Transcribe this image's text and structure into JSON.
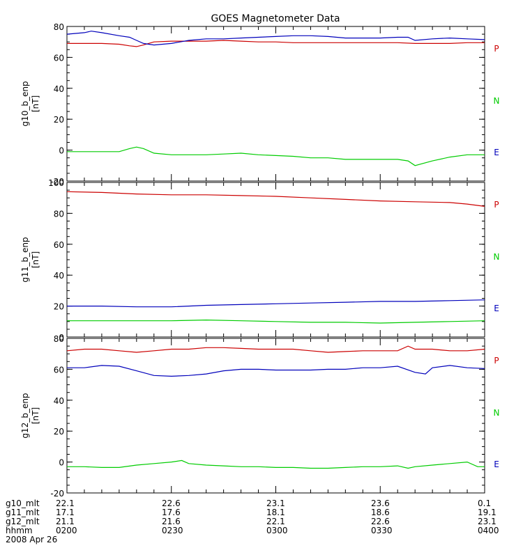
{
  "chart_data": {
    "type": "line",
    "title": "GOES Magnetometer Data",
    "panels": [
      {
        "ylabel": "g10_b_enp",
        "yunit": "[nT]",
        "ylim": [
          -20,
          80
        ],
        "yticks": [
          -20,
          0,
          20,
          40,
          60,
          80
        ],
        "series": [
          {
            "name": "P",
            "color": "#cc0000",
            "x": [
              0,
              5,
              10,
              15,
              18,
              20,
              22,
              25,
              30,
              35,
              40,
              45,
              50,
              55,
              60,
              65,
              70,
              75,
              80,
              85,
              90,
              95,
              100,
              105,
              110,
              115,
              120
            ],
            "y": [
              69,
              69,
              69,
              68.5,
              67.5,
              67,
              68,
              70,
              70.5,
              70.5,
              70.5,
              71,
              70.5,
              70,
              70,
              69.5,
              69.5,
              69.5,
              69.5,
              69.5,
              69.5,
              69.5,
              69,
              69,
              69,
              69.5,
              69.5
            ]
          },
          {
            "name": "N",
            "color": "#00cc00",
            "x": [
              0,
              5,
              10,
              15,
              18,
              20,
              22,
              25,
              30,
              35,
              40,
              45,
              50,
              55,
              60,
              65,
              70,
              75,
              80,
              85,
              90,
              95,
              98,
              100,
              105,
              110,
              115,
              120
            ],
            "y": [
              -1,
              -1,
              -1,
              -1,
              1,
              2,
              1,
              -2,
              -3,
              -3,
              -3,
              -2.5,
              -2,
              -3,
              -3.5,
              -4,
              -5,
              -5,
              -6,
              -6,
              -6,
              -6,
              -7,
              -10,
              -7,
              -4.5,
              -3,
              -3
            ]
          },
          {
            "name": "E",
            "color": "#0000bb",
            "x": [
              0,
              5,
              7,
              10,
              15,
              18,
              20,
              22,
              25,
              30,
              35,
              40,
              45,
              50,
              55,
              60,
              65,
              70,
              75,
              80,
              85,
              90,
              95,
              98,
              100,
              105,
              110,
              115,
              120
            ],
            "y": [
              75,
              76,
              77,
              76,
              74,
              73,
              71,
              69,
              68,
              69,
              71,
              72,
              72,
              72.5,
              73,
              73.5,
              74,
              74,
              73.5,
              72.5,
              72.5,
              72.5,
              73,
              73,
              71,
              72,
              72.5,
              72,
              71.5
            ]
          }
        ]
      },
      {
        "ylabel": "g11_b_enp",
        "yunit": "[nT]",
        "ylim": [
          0,
          100
        ],
        "yticks": [
          0,
          20,
          40,
          60,
          80,
          100
        ],
        "series": [
          {
            "name": "P",
            "color": "#cc0000",
            "x": [
              0,
              10,
              20,
              30,
              40,
              50,
              60,
              70,
              80,
              90,
              100,
              110,
              115,
              120
            ],
            "y": [
              94,
              93.5,
              92.5,
              92,
              92,
              91.5,
              91,
              90,
              89,
              88,
              87.5,
              87,
              86,
              84.5
            ]
          },
          {
            "name": "N",
            "color": "#00cc00",
            "x": [
              0,
              10,
              20,
              30,
              40,
              50,
              60,
              70,
              80,
              90,
              100,
              110,
              120
            ],
            "y": [
              10.5,
              10.5,
              10.5,
              10.5,
              11,
              10.5,
              10,
              9.5,
              9.5,
              9,
              9.5,
              10,
              10.5
            ]
          },
          {
            "name": "E",
            "color": "#0000bb",
            "x": [
              0,
              10,
              20,
              30,
              40,
              50,
              60,
              70,
              80,
              90,
              100,
              110,
              120
            ],
            "y": [
              20,
              20,
              19.5,
              19.5,
              20.5,
              21,
              21.5,
              22,
              22.5,
              23,
              23,
              23.5,
              24
            ]
          }
        ]
      },
      {
        "ylabel": "g12_b_enp",
        "yunit": "[nT]",
        "ylim": [
          -20,
          80
        ],
        "yticks": [
          -20,
          0,
          20,
          40,
          60,
          80
        ],
        "series": [
          {
            "name": "P",
            "color": "#cc0000",
            "x": [
              0,
              5,
              10,
              15,
              20,
              25,
              30,
              35,
              40,
              45,
              50,
              55,
              60,
              65,
              70,
              75,
              80,
              85,
              90,
              95,
              98,
              100,
              105,
              110,
              115,
              120
            ],
            "y": [
              72,
              73,
              73,
              72,
              71,
              72,
              73,
              73,
              74,
              74,
              73.5,
              73,
              73,
              73,
              72,
              71,
              71.5,
              72,
              72,
              72,
              75,
              73,
              73,
              72,
              72,
              73
            ]
          },
          {
            "name": "N",
            "color": "#00cc00",
            "x": [
              0,
              5,
              10,
              15,
              20,
              25,
              30,
              33,
              35,
              40,
              45,
              50,
              55,
              60,
              65,
              70,
              75,
              80,
              85,
              90,
              95,
              98,
              100,
              105,
              110,
              115,
              118,
              120
            ],
            "y": [
              -3,
              -3,
              -3.5,
              -3.5,
              -2,
              -1,
              0,
              1,
              -1,
              -2,
              -2.5,
              -3,
              -3,
              -3.5,
              -3.5,
              -4,
              -4,
              -3.5,
              -3,
              -3,
              -2.5,
              -4,
              -3,
              -2,
              -1,
              0,
              -3,
              -3
            ]
          },
          {
            "name": "E",
            "color": "#0000bb",
            "x": [
              0,
              5,
              10,
              15,
              20,
              25,
              30,
              35,
              40,
              45,
              50,
              55,
              60,
              65,
              70,
              75,
              80,
              85,
              90,
              95,
              100,
              103,
              105,
              110,
              115,
              120
            ],
            "y": [
              61,
              61,
              62.5,
              62,
              59,
              56,
              55.5,
              56,
              57,
              59,
              60,
              60,
              59.5,
              59.5,
              59.5,
              60,
              60,
              61,
              61,
              62,
              58,
              57,
              61,
              62.5,
              61,
              60.5
            ]
          }
        ]
      }
    ],
    "xlim": [
      0,
      120
    ],
    "xtick_minutes": [
      0,
      30,
      60,
      90,
      120
    ],
    "footer": {
      "labels": [
        "g10_mlt",
        "g11_mlt",
        "g12_mlt",
        "hhmm"
      ],
      "rows": [
        [
          "22.1",
          "22.6",
          "23.1",
          "23.6",
          "0.1"
        ],
        [
          "17.1",
          "17.6",
          "18.1",
          "18.6",
          "19.1"
        ],
        [
          "21.1",
          "21.6",
          "22.1",
          "22.6",
          "23.1"
        ],
        [
          "0200",
          "0230",
          "0300",
          "0330",
          "0400"
        ]
      ],
      "date": "2008 Apr 26"
    }
  }
}
